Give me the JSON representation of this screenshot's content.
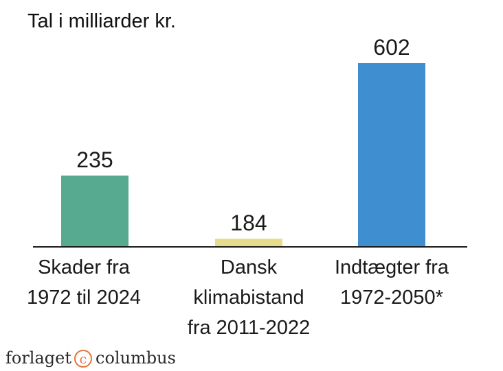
{
  "chart_data": {
    "type": "bar",
    "title": "Tal i milliarder kr.",
    "categories": [
      [
        "Skader fra",
        "1972 til 2024"
      ],
      [
        "Dansk",
        "klimabistand",
        "fra 2011-2022"
      ],
      [
        "Indtægter fra",
        "1972-2050*"
      ]
    ],
    "values": [
      235,
      184,
      602
    ],
    "value_labels": [
      "235",
      "184",
      "602"
    ],
    "colors": [
      "#57aa90",
      "#e6dc8c",
      "#3f8ecf"
    ],
    "xlabel": "",
    "ylabel": "",
    "grid": false,
    "legend": "none"
  },
  "branding": {
    "logo_left": "forlaget",
    "logo_symbol": "c",
    "logo_right": "columbus",
    "logo_accent": "#e8743b"
  }
}
